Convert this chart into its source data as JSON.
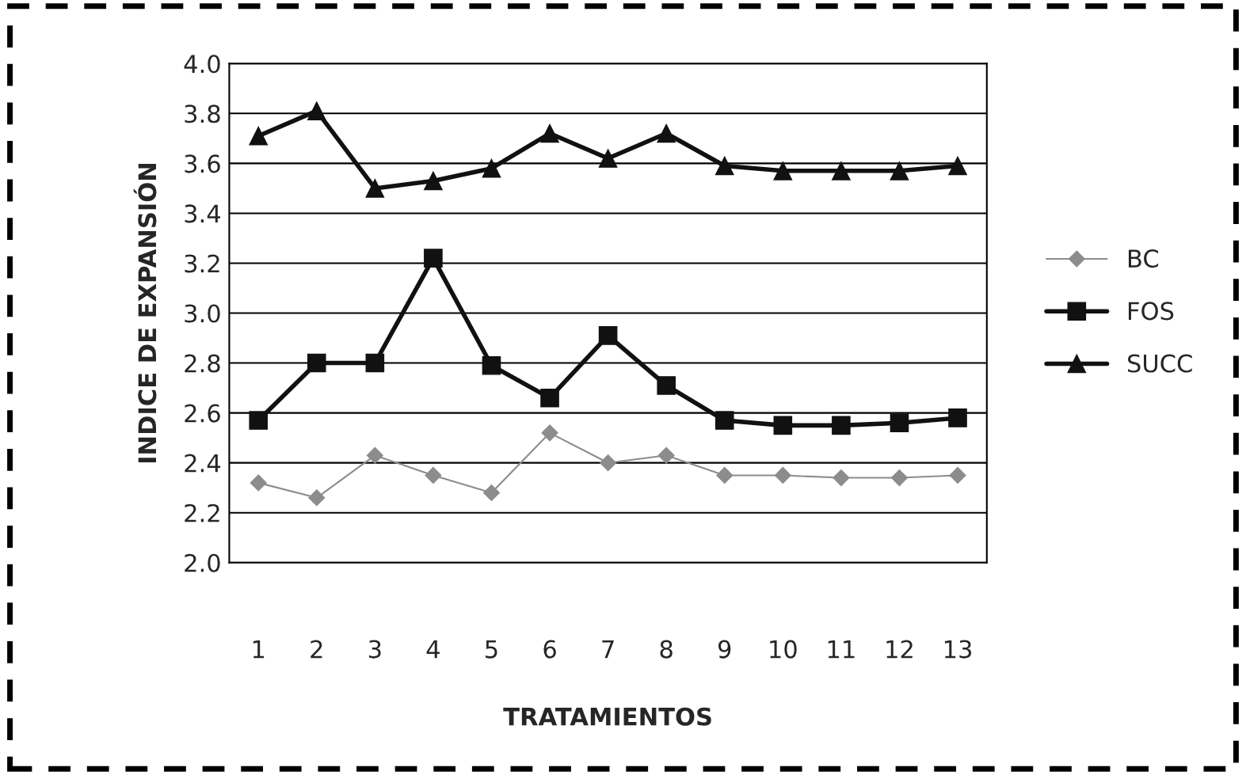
{
  "chart_data": {
    "type": "line",
    "xlabel": "TRATAMIENTOS",
    "ylabel": "INDICE DE EXPANSIÓN",
    "categories": [
      "1",
      "2",
      "3",
      "4",
      "5",
      "6",
      "7",
      "8",
      "9",
      "10",
      "11",
      "12",
      "13"
    ],
    "series": [
      {
        "name": "BC",
        "color": "#8c8c8c",
        "marker": "diamond",
        "values": [
          2.32,
          2.26,
          2.43,
          2.35,
          2.28,
          2.52,
          2.4,
          2.43,
          2.35,
          2.35,
          2.34,
          2.34,
          2.35
        ]
      },
      {
        "name": "FOS",
        "color": "#111111",
        "marker": "square",
        "values": [
          2.57,
          2.8,
          2.8,
          3.22,
          2.79,
          2.66,
          2.91,
          2.71,
          2.57,
          2.55,
          2.55,
          2.56,
          2.58
        ]
      },
      {
        "name": "SUCC",
        "color": "#111111",
        "marker": "triangle",
        "values": [
          3.71,
          3.81,
          3.5,
          3.53,
          3.58,
          3.72,
          3.62,
          3.72,
          3.59,
          3.57,
          3.57,
          3.57,
          3.59
        ]
      }
    ],
    "ylim": [
      2.0,
      4.0
    ],
    "yticks": [
      {
        "value": 2.0,
        "label": "2.0"
      },
      {
        "value": 2.2,
        "label": "2.2"
      },
      {
        "value": 2.4,
        "label": "2.4"
      },
      {
        "value": 2.6,
        "label": "2.6"
      },
      {
        "value": 2.8,
        "label": "2.8"
      },
      {
        "value": 3.0,
        "label": "3.0"
      },
      {
        "value": 3.2,
        "label": "3.2"
      },
      {
        "value": 3.4,
        "label": "3.4"
      },
      {
        "value": 3.6,
        "label": "3.6"
      },
      {
        "value": 3.8,
        "label": "3.8"
      },
      {
        "value": 4.0,
        "label": "4.0"
      }
    ],
    "grid": "y",
    "legend": "right"
  }
}
